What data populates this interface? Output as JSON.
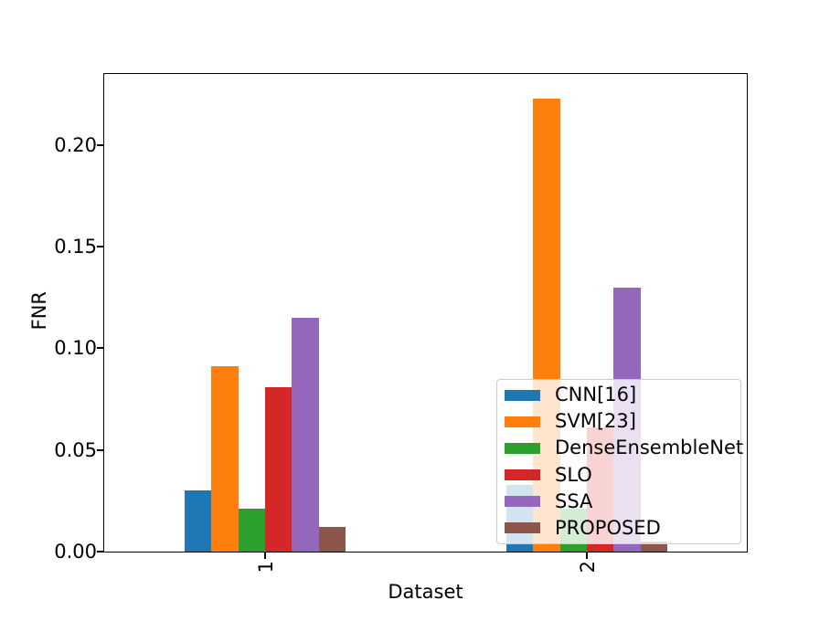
{
  "chart_data": {
    "type": "bar",
    "title": "",
    "xlabel": "Dataset",
    "ylabel": "FNR",
    "categories": [
      "1",
      "2"
    ],
    "series": [
      {
        "name": "CNN[16]",
        "color": "#1f77b4",
        "values": [
          0.03,
          0.033
        ]
      },
      {
        "name": "SVM[23]",
        "color": "#ff7f0e",
        "values": [
          0.091,
          0.223
        ]
      },
      {
        "name": "DenseEnsembleNet",
        "color": "#2ca02c",
        "values": [
          0.021,
          0.021
        ]
      },
      {
        "name": "SLO",
        "color": "#d62728",
        "values": [
          0.081,
          0.061
        ]
      },
      {
        "name": "SSA",
        "color": "#9467bd",
        "values": [
          0.115,
          0.13
        ]
      },
      {
        "name": "PROPOSED",
        "color": "#8c564b",
        "values": [
          0.012,
          0.005
        ]
      }
    ],
    "ylim": [
      0,
      0.235
    ],
    "yticks": [
      0.0,
      0.05,
      0.1,
      0.15,
      0.2
    ],
    "ytick_labels": [
      "0.00",
      "0.05",
      "0.10",
      "0.15",
      "0.20"
    ],
    "xtick_labels": [
      "1",
      "2"
    ],
    "xtick_rotation_deg": 90,
    "grid": false,
    "legend_position": "lower right (inside axes, semi-transparent)",
    "colors": {
      "axes_spine": "#000000",
      "text": "#000000",
      "legend_border": "#cccccc",
      "background": "#ffffff"
    }
  }
}
